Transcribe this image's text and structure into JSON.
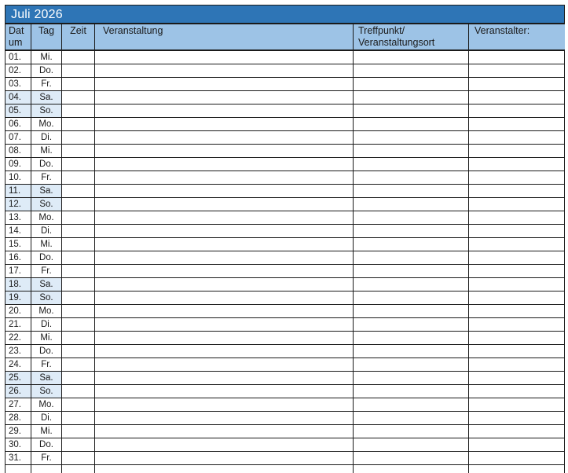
{
  "title": "Juli 2026",
  "colors": {
    "title_bg": "#2E75B6",
    "title_text": "#FFFFFF",
    "header_bg": "#9DC3E6",
    "weekend_bg": "#DEEBF7",
    "border": "#1A1A1A",
    "text": "#1A1A1A"
  },
  "header": {
    "datum_lines": [
      "Dat",
      "um"
    ],
    "tag": "Tag",
    "zeit": "Zeit",
    "veranstaltung": "Veranstaltung",
    "treffpunkt_lines": [
      "Treffpunkt/",
      "Veranstaltungsort"
    ],
    "veranstalter": "Veranstalter:"
  },
  "rows": [
    {
      "date": "01.",
      "day": "Mi.",
      "weekend": false
    },
    {
      "date": "02.",
      "day": "Do.",
      "weekend": false
    },
    {
      "date": "03.",
      "day": "Fr.",
      "weekend": false
    },
    {
      "date": "04.",
      "day": "Sa.",
      "weekend": true
    },
    {
      "date": "05.",
      "day": "So.",
      "weekend": true
    },
    {
      "date": "06.",
      "day": "Mo.",
      "weekend": false
    },
    {
      "date": "07.",
      "day": "Di.",
      "weekend": false
    },
    {
      "date": "08.",
      "day": "Mi.",
      "weekend": false
    },
    {
      "date": "09.",
      "day": "Do.",
      "weekend": false
    },
    {
      "date": "10.",
      "day": "Fr.",
      "weekend": false
    },
    {
      "date": "11.",
      "day": "Sa.",
      "weekend": true
    },
    {
      "date": "12.",
      "day": "So.",
      "weekend": true
    },
    {
      "date": "13.",
      "day": "Mo.",
      "weekend": false
    },
    {
      "date": "14.",
      "day": "Di.",
      "weekend": false
    },
    {
      "date": "15.",
      "day": "Mi.",
      "weekend": false
    },
    {
      "date": "16.",
      "day": "Do.",
      "weekend": false
    },
    {
      "date": "17.",
      "day": "Fr.",
      "weekend": false
    },
    {
      "date": "18.",
      "day": "Sa.",
      "weekend": true
    },
    {
      "date": "19.",
      "day": "So.",
      "weekend": true
    },
    {
      "date": "20.",
      "day": "Mo.",
      "weekend": false
    },
    {
      "date": "21.",
      "day": "Di.",
      "weekend": false
    },
    {
      "date": "22.",
      "day": "Mi.",
      "weekend": false
    },
    {
      "date": "23.",
      "day": "Do.",
      "weekend": false
    },
    {
      "date": "24.",
      "day": "Fr.",
      "weekend": false
    },
    {
      "date": "25.",
      "day": "Sa.",
      "weekend": true
    },
    {
      "date": "26.",
      "day": "So.",
      "weekend": true
    },
    {
      "date": "27.",
      "day": "Mo.",
      "weekend": false
    },
    {
      "date": "28.",
      "day": "Di.",
      "weekend": false
    },
    {
      "date": "29.",
      "day": "Mi.",
      "weekend": false
    },
    {
      "date": "30.",
      "day": "Do.",
      "weekend": false
    },
    {
      "date": "31.",
      "day": "Fr.",
      "weekend": false
    }
  ]
}
